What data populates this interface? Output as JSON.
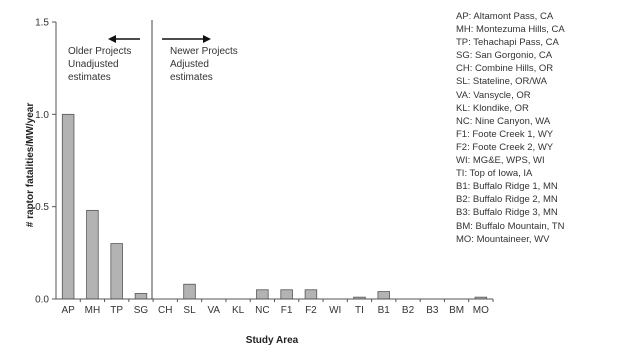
{
  "chart_data": {
    "type": "bar",
    "categories": [
      "AP",
      "MH",
      "TP",
      "SG",
      "CH",
      "SL",
      "VA",
      "KL",
      "NC",
      "F1",
      "F2",
      "WI",
      "TI",
      "B1",
      "B2",
      "B3",
      "BM",
      "MO"
    ],
    "values": [
      1.0,
      0.48,
      0.3,
      0.03,
      0.0,
      0.08,
      0.0,
      0.0,
      0.05,
      0.05,
      0.05,
      0.0,
      0.01,
      0.04,
      0.0,
      0.0,
      0.0,
      0.01
    ],
    "xlabel": "Study Area",
    "ylabel": "# raptor fatalities/MW/year",
    "ylim": [
      0,
      1.5
    ],
    "yticks": [
      0.0,
      0.5,
      1.0,
      1.5
    ],
    "ytick_labels": [
      "0.0",
      "0.5",
      "1.0",
      "1.5"
    ],
    "grid": false,
    "bar_color": "#b3b3b3",
    "annotations": {
      "older": [
        "Older Projects",
        "Unadjusted",
        "estimates"
      ],
      "newer": [
        "Newer Projects",
        "Adjusted",
        "estimates"
      ]
    },
    "legend_placement": "right",
    "legend": [
      "AP: Altamont Pass, CA",
      "MH: Montezuma Hills, CA",
      "TP: Tehachapi Pass, CA",
      "SG: San Gorgonio, CA",
      "CH: Combine Hills, OR",
      "SL: Stateline, OR/WA",
      "VA: Vansycle, OR",
      "KL: Klondike, OR",
      "NC: Nine Canyon, WA",
      "F1: Foote Creek 1, WY",
      "F2: Foote Creek 2, WY",
      "WI: MG&E, WPS, WI",
      "TI: Top of Iowa, IA",
      "B1: Buffalo Ridge 1, MN",
      "B2: Buffalo Ridge 2, MN",
      "B3: Buffalo Ridge 3, MN",
      "BM: Buffalo Mountain, TN",
      "MO: Mountaineer, WV"
    ]
  }
}
